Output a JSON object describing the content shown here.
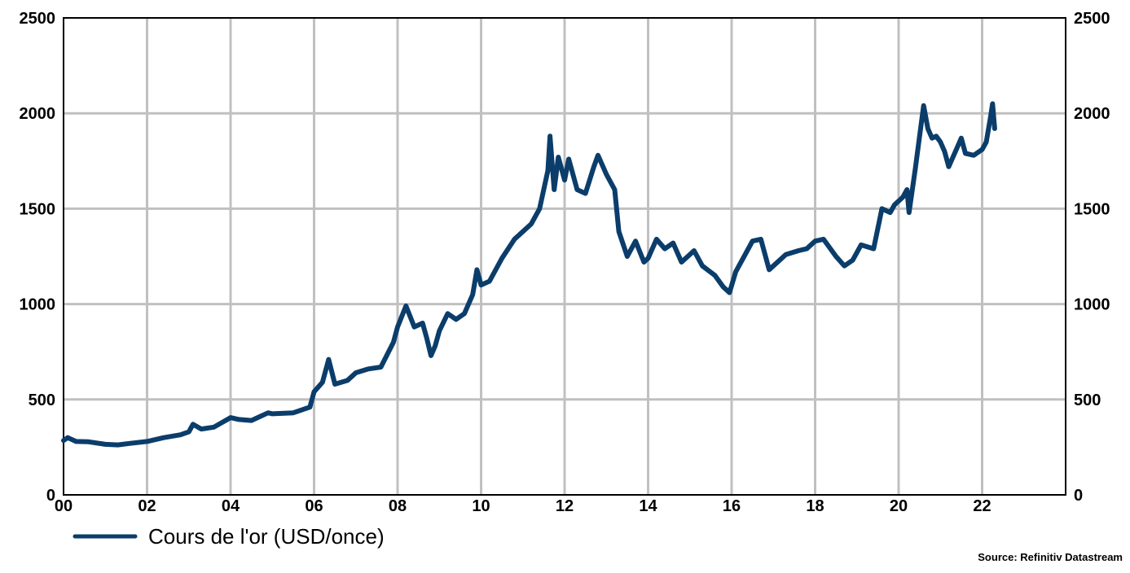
{
  "chart_data": {
    "type": "line",
    "title": "",
    "xlabel": "",
    "ylabel": "",
    "x_tick_labels": [
      "00",
      "02",
      "04",
      "06",
      "08",
      "10",
      "12",
      "14",
      "16",
      "18",
      "20",
      "22"
    ],
    "y_tick_labels": [
      "0",
      "500",
      "1000",
      "1500",
      "2000",
      "2500"
    ],
    "xlim": [
      2000,
      2024
    ],
    "ylim": [
      0,
      2500
    ],
    "grid": true,
    "legend_placement": "bottom-left",
    "source": "Source: Refinitiv Datastream",
    "series": [
      {
        "name": "Cours de l'or (USD/once)",
        "color": "#0b3d6b",
        "points": [
          [
            2000.0,
            285
          ],
          [
            2000.1,
            300
          ],
          [
            2000.3,
            280
          ],
          [
            2000.6,
            278
          ],
          [
            2001.0,
            265
          ],
          [
            2001.3,
            262
          ],
          [
            2001.6,
            270
          ],
          [
            2002.0,
            280
          ],
          [
            2002.4,
            300
          ],
          [
            2002.8,
            315
          ],
          [
            2003.0,
            330
          ],
          [
            2003.1,
            370
          ],
          [
            2003.3,
            345
          ],
          [
            2003.6,
            355
          ],
          [
            2004.0,
            405
          ],
          [
            2004.2,
            395
          ],
          [
            2004.5,
            390
          ],
          [
            2004.9,
            430
          ],
          [
            2005.0,
            425
          ],
          [
            2005.5,
            430
          ],
          [
            2005.9,
            460
          ],
          [
            2006.0,
            540
          ],
          [
            2006.2,
            590
          ],
          [
            2006.35,
            710
          ],
          [
            2006.5,
            580
          ],
          [
            2006.8,
            600
          ],
          [
            2007.0,
            640
          ],
          [
            2007.3,
            660
          ],
          [
            2007.6,
            670
          ],
          [
            2007.9,
            800
          ],
          [
            2008.0,
            880
          ],
          [
            2008.2,
            990
          ],
          [
            2008.4,
            880
          ],
          [
            2008.6,
            900
          ],
          [
            2008.7,
            820
          ],
          [
            2008.8,
            730
          ],
          [
            2008.9,
            780
          ],
          [
            2009.0,
            860
          ],
          [
            2009.2,
            950
          ],
          [
            2009.4,
            920
          ],
          [
            2009.6,
            950
          ],
          [
            2009.8,
            1050
          ],
          [
            2009.9,
            1180
          ],
          [
            2010.0,
            1100
          ],
          [
            2010.2,
            1120
          ],
          [
            2010.5,
            1240
          ],
          [
            2010.8,
            1340
          ],
          [
            2011.0,
            1380
          ],
          [
            2011.2,
            1420
          ],
          [
            2011.4,
            1500
          ],
          [
            2011.6,
            1700
          ],
          [
            2011.65,
            1880
          ],
          [
            2011.75,
            1600
          ],
          [
            2011.85,
            1770
          ],
          [
            2012.0,
            1650
          ],
          [
            2012.1,
            1760
          ],
          [
            2012.3,
            1600
          ],
          [
            2012.5,
            1580
          ],
          [
            2012.7,
            1720
          ],
          [
            2012.8,
            1780
          ],
          [
            2013.0,
            1680
          ],
          [
            2013.2,
            1600
          ],
          [
            2013.3,
            1380
          ],
          [
            2013.5,
            1250
          ],
          [
            2013.7,
            1330
          ],
          [
            2013.9,
            1220
          ],
          [
            2014.0,
            1240
          ],
          [
            2014.2,
            1340
          ],
          [
            2014.4,
            1290
          ],
          [
            2014.6,
            1320
          ],
          [
            2014.8,
            1220
          ],
          [
            2015.0,
            1260
          ],
          [
            2015.1,
            1280
          ],
          [
            2015.3,
            1200
          ],
          [
            2015.6,
            1150
          ],
          [
            2015.8,
            1090
          ],
          [
            2015.95,
            1060
          ],
          [
            2016.1,
            1170
          ],
          [
            2016.3,
            1250
          ],
          [
            2016.5,
            1330
          ],
          [
            2016.7,
            1340
          ],
          [
            2016.9,
            1180
          ],
          [
            2017.1,
            1220
          ],
          [
            2017.3,
            1260
          ],
          [
            2017.6,
            1280
          ],
          [
            2017.8,
            1290
          ],
          [
            2018.0,
            1330
          ],
          [
            2018.2,
            1340
          ],
          [
            2018.5,
            1250
          ],
          [
            2018.7,
            1200
          ],
          [
            2018.9,
            1230
          ],
          [
            2019.1,
            1310
          ],
          [
            2019.4,
            1290
          ],
          [
            2019.6,
            1500
          ],
          [
            2019.8,
            1480
          ],
          [
            2019.9,
            1520
          ],
          [
            2020.1,
            1560
          ],
          [
            2020.2,
            1600
          ],
          [
            2020.25,
            1480
          ],
          [
            2020.4,
            1710
          ],
          [
            2020.55,
            1960
          ],
          [
            2020.6,
            2040
          ],
          [
            2020.7,
            1920
          ],
          [
            2020.8,
            1870
          ],
          [
            2020.9,
            1880
          ],
          [
            2021.0,
            1850
          ],
          [
            2021.1,
            1800
          ],
          [
            2021.2,
            1720
          ],
          [
            2021.4,
            1820
          ],
          [
            2021.5,
            1870
          ],
          [
            2021.6,
            1790
          ],
          [
            2021.8,
            1780
          ],
          [
            2022.0,
            1810
          ],
          [
            2022.1,
            1850
          ],
          [
            2022.2,
            1980
          ],
          [
            2022.25,
            2050
          ],
          [
            2022.3,
            1920
          ]
        ]
      }
    ]
  }
}
